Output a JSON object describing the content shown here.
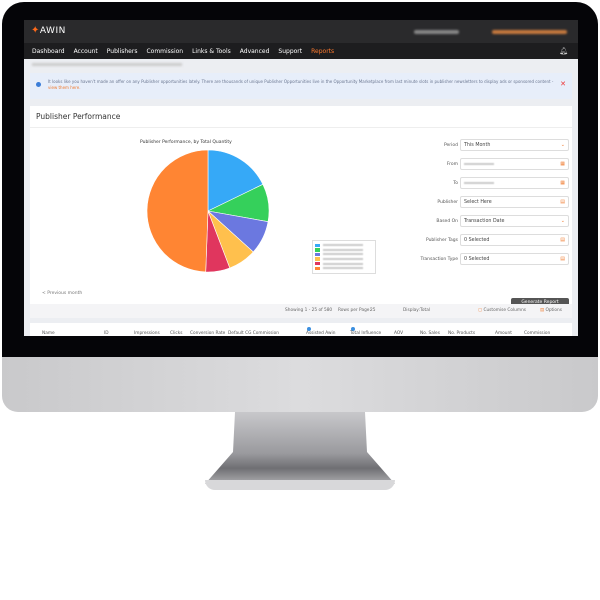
{
  "app": {
    "logo": "AWIN",
    "logo_mark": "flame"
  },
  "nav": {
    "items": [
      "Dashboard",
      "Account",
      "Publishers",
      "Commission",
      "Links & Tools",
      "Advanced",
      "Support",
      "Reports"
    ],
    "active": "Reports"
  },
  "alert": {
    "text": "It looks like you haven't made an offer on any Publisher opportunities lately. There are thousands of unique Publisher Opportunities live in the Opportunity Marketplace from last minute slots in publisher newsletters to display ads or sponsored content -",
    "link": "view them here."
  },
  "card": {
    "title": "Publisher Performance",
    "previous": "< Previous month"
  },
  "chart_data": {
    "type": "pie",
    "title": "Publisher Performance, by Total Quantity",
    "values": [
      17.8,
      10,
      8.9,
      7.5,
      6.4,
      49.4
    ],
    "colors": [
      "#36a9f7",
      "#35d05b",
      "#6b78e0",
      "#ffc04d",
      "#e0365e",
      "#ff8533"
    ],
    "legend": "right"
  },
  "form": {
    "fields": [
      {
        "label": "Period",
        "value": "This Month",
        "icon": "chevron-down"
      },
      {
        "label": "From",
        "value": "",
        "icon": "calendar"
      },
      {
        "label": "To",
        "value": "",
        "icon": "calendar"
      },
      {
        "label": "Publisher",
        "value": "Select Here",
        "icon": "list"
      },
      {
        "label": "Based On",
        "value": "Transaction Date",
        "icon": "chevron-down"
      },
      {
        "label": "Publisher Tags",
        "value": "0 Selected",
        "icon": "list"
      },
      {
        "label": "Transaction Type",
        "value": "0 Selected",
        "icon": "list"
      }
    ],
    "generate": "Generate Report"
  },
  "toolbar": {
    "showing": "Showing 1 - 25 of 580",
    "rows_label": "Rows per Page:",
    "rows_value": "25",
    "display_label": "Display:",
    "display_value": "Total",
    "customise": "Customise Columns",
    "options": "Options"
  },
  "table": {
    "columns": [
      "Name",
      "ID",
      "Impressions",
      "Clicks",
      "Conversion Rate",
      "Default CG Commission",
      "Assisted Awin",
      "Total Influence",
      "AOV",
      "No. Sales",
      "No. Products",
      "Amount",
      "Commission"
    ]
  }
}
